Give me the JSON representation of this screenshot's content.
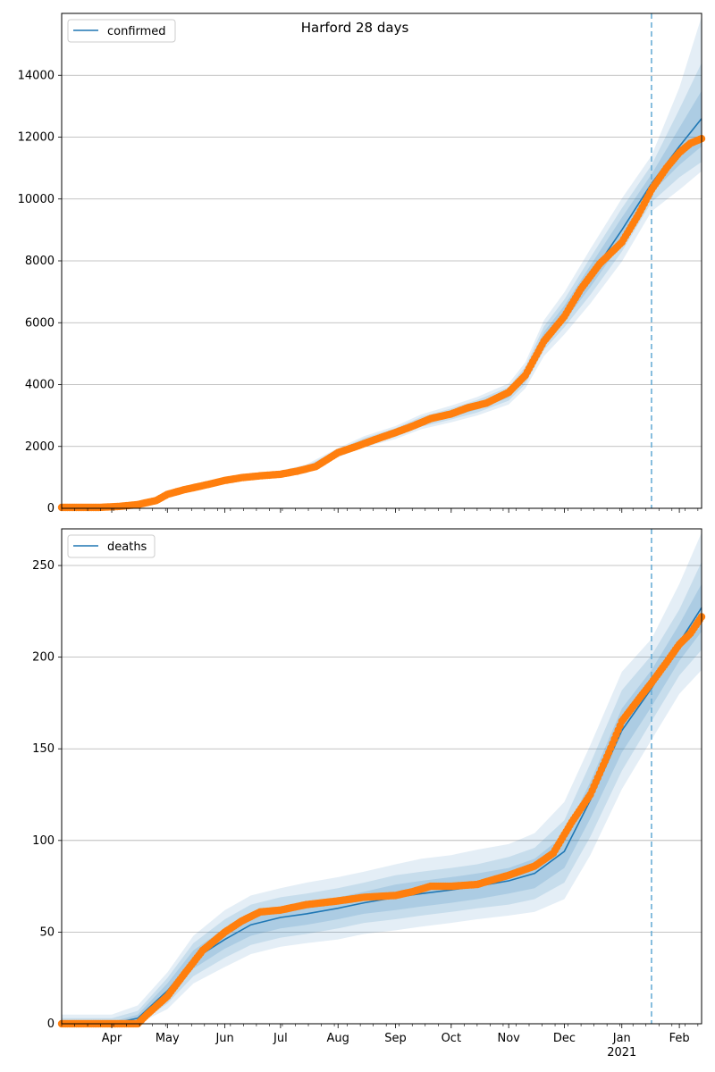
{
  "title": "Harford 28 days",
  "colors": {
    "model": "#1f77b4",
    "observed": "#ff7f0e",
    "band": "#1f77b4",
    "forecast_line": "#6aaed6",
    "grid": "#b0b0b0"
  },
  "x_axis": {
    "start": "2020-03-05",
    "end": "2021-02-13",
    "forecast_date": "2021-01-17",
    "month_ticks": [
      {
        "label": "Apr",
        "date": "2020-04-01"
      },
      {
        "label": "May",
        "date": "2020-05-01"
      },
      {
        "label": "Jun",
        "date": "2020-06-01"
      },
      {
        "label": "Jul",
        "date": "2020-07-01"
      },
      {
        "label": "Aug",
        "date": "2020-08-01"
      },
      {
        "label": "Sep",
        "date": "2020-09-01"
      },
      {
        "label": "Oct",
        "date": "2020-10-01"
      },
      {
        "label": "Nov",
        "date": "2020-11-01"
      },
      {
        "label": "Dec",
        "date": "2020-12-01"
      },
      {
        "label": "Jan",
        "date": "2021-01-01"
      },
      {
        "label": "Feb",
        "date": "2021-02-01"
      }
    ],
    "year_label": "2021"
  },
  "chart_data": [
    {
      "type": "line",
      "series_name": "confirmed",
      "legend": "confirmed",
      "legend_position": "top-left",
      "grid": "horizontal",
      "ylim": [
        0,
        16000
      ],
      "yticks": [
        0,
        2000,
        4000,
        6000,
        8000,
        10000,
        12000,
        14000
      ],
      "ytick_labels": [
        "0",
        "2000",
        "4000",
        "6000",
        "8000",
        "10000",
        "12000",
        "14000"
      ],
      "x": [
        "2020-03-05",
        "2020-03-20",
        "2020-04-01",
        "2020-04-15",
        "2020-05-01",
        "2020-05-15",
        "2020-06-01",
        "2020-06-15",
        "2020-07-01",
        "2020-07-15",
        "2020-08-01",
        "2020-08-15",
        "2020-09-01",
        "2020-09-15",
        "2020-10-01",
        "2020-10-15",
        "2020-11-01",
        "2020-11-10",
        "2020-11-20",
        "2020-12-01",
        "2020-12-15",
        "2021-01-01",
        "2021-01-17",
        "2021-02-01",
        "2021-02-13"
      ],
      "model": [
        40,
        45,
        60,
        150,
        450,
        700,
        900,
        1030,
        1110,
        1280,
        1800,
        2150,
        2450,
        2800,
        3050,
        3300,
        3700,
        4300,
        5500,
        6300,
        7500,
        9000,
        10500,
        11700,
        12600
      ],
      "band_inner": [
        [
          40,
          40
        ],
        [
          45,
          45
        ],
        [
          58,
          62
        ],
        [
          140,
          160
        ],
        [
          430,
          470
        ],
        [
          670,
          730
        ],
        [
          870,
          930
        ],
        [
          990,
          1070
        ],
        [
          1070,
          1150
        ],
        [
          1230,
          1330
        ],
        [
          1740,
          1860
        ],
        [
          2080,
          2220
        ],
        [
          2370,
          2530
        ],
        [
          2710,
          2890
        ],
        [
          2950,
          3150
        ],
        [
          3190,
          3410
        ],
        [
          3580,
          3820
        ],
        [
          4150,
          4450
        ],
        [
          5300,
          5700
        ],
        [
          6050,
          6550
        ],
        [
          7150,
          7850
        ],
        [
          8600,
          9400
        ],
        [
          10200,
          10800
        ],
        [
          11100,
          12300
        ],
        [
          11700,
          13500
        ]
      ],
      "band_mid": [
        [
          40,
          40
        ],
        [
          45,
          45
        ],
        [
          55,
          65
        ],
        [
          130,
          170
        ],
        [
          410,
          490
        ],
        [
          640,
          760
        ],
        [
          840,
          960
        ],
        [
          960,
          1100
        ],
        [
          1040,
          1180
        ],
        [
          1190,
          1370
        ],
        [
          1700,
          1900
        ],
        [
          2030,
          2270
        ],
        [
          2310,
          2590
        ],
        [
          2640,
          2960
        ],
        [
          2870,
          3230
        ],
        [
          3100,
          3500
        ],
        [
          3480,
          3920
        ],
        [
          4020,
          4580
        ],
        [
          5120,
          5880
        ],
        [
          5850,
          6750
        ],
        [
          6900,
          8100
        ],
        [
          8300,
          9700
        ],
        [
          9900,
          11100
        ],
        [
          10700,
          12900
        ],
        [
          11200,
          14400
        ]
      ],
      "band_outer": [
        [
          40,
          40
        ],
        [
          45,
          45
        ],
        [
          52,
          68
        ],
        [
          120,
          180
        ],
        [
          390,
          510
        ],
        [
          610,
          790
        ],
        [
          810,
          990
        ],
        [
          920,
          1140
        ],
        [
          1000,
          1220
        ],
        [
          1140,
          1420
        ],
        [
          1650,
          1950
        ],
        [
          1970,
          2330
        ],
        [
          2240,
          2660
        ],
        [
          2560,
          3040
        ],
        [
          2780,
          3320
        ],
        [
          3000,
          3600
        ],
        [
          3360,
          4040
        ],
        [
          3880,
          4720
        ],
        [
          4920,
          6080
        ],
        [
          5620,
          6980
        ],
        [
          6620,
          8380
        ],
        [
          7980,
          10020
        ],
        [
          9600,
          11400
        ],
        [
          10300,
          13600
        ],
        [
          10900,
          15900
        ]
      ],
      "observed": [
        [
          "2020-03-05",
          30
        ],
        [
          "2020-03-15",
          30
        ],
        [
          "2020-03-25",
          30
        ],
        [
          "2020-04-05",
          60
        ],
        [
          "2020-04-15",
          120
        ],
        [
          "2020-04-25",
          250
        ],
        [
          "2020-05-01",
          450
        ],
        [
          "2020-05-10",
          600
        ],
        [
          "2020-05-20",
          730
        ],
        [
          "2020-06-01",
          900
        ],
        [
          "2020-06-10",
          990
        ],
        [
          "2020-06-20",
          1050
        ],
        [
          "2020-07-01",
          1100
        ],
        [
          "2020-07-10",
          1200
        ],
        [
          "2020-07-20",
          1350
        ],
        [
          "2020-08-01",
          1800
        ],
        [
          "2020-08-10",
          1980
        ],
        [
          "2020-08-20",
          2200
        ],
        [
          "2020-09-01",
          2450
        ],
        [
          "2020-09-10",
          2650
        ],
        [
          "2020-09-20",
          2900
        ],
        [
          "2020-10-01",
          3050
        ],
        [
          "2020-10-10",
          3250
        ],
        [
          "2020-10-20",
          3400
        ],
        [
          "2020-11-01",
          3750
        ],
        [
          "2020-11-10",
          4300
        ],
        [
          "2020-11-20",
          5400
        ],
        [
          "2020-12-01",
          6200
        ],
        [
          "2020-12-10",
          7100
        ],
        [
          "2020-12-20",
          7900
        ],
        [
          "2021-01-01",
          8600
        ],
        [
          "2021-01-10",
          9500
        ],
        [
          "2021-01-17",
          10300
        ],
        [
          "2021-01-25",
          11000
        ],
        [
          "2021-02-01",
          11500
        ],
        [
          "2021-02-07",
          11800
        ],
        [
          "2021-02-13",
          11950
        ]
      ]
    },
    {
      "type": "line",
      "series_name": "deaths",
      "legend": "deaths",
      "legend_position": "top-left",
      "grid": "horizontal",
      "ylim": [
        0,
        270
      ],
      "yticks": [
        0,
        50,
        100,
        150,
        200,
        250
      ],
      "ytick_labels": [
        "0",
        "50",
        "100",
        "150",
        "200",
        "250"
      ],
      "x": [
        "2020-03-05",
        "2020-04-01",
        "2020-04-15",
        "2020-05-01",
        "2020-05-15",
        "2020-06-01",
        "2020-06-15",
        "2020-07-01",
        "2020-07-15",
        "2020-08-01",
        "2020-08-15",
        "2020-09-01",
        "2020-09-15",
        "2020-10-01",
        "2020-10-15",
        "2020-11-01",
        "2020-11-15",
        "2020-12-01",
        "2020-12-15",
        "2021-01-01",
        "2021-01-17",
        "2021-02-01",
        "2021-02-13"
      ],
      "model": [
        0,
        0,
        3,
        18,
        35,
        46,
        54,
        58,
        60,
        63,
        66,
        69,
        71,
        73,
        75,
        78,
        82,
        94,
        122,
        160,
        183,
        208,
        227
      ],
      "band_inner": [
        [
          0,
          1
        ],
        [
          0,
          1
        ],
        [
          1,
          5
        ],
        [
          14,
          22
        ],
        [
          30,
          40
        ],
        [
          41,
          52
        ],
        [
          48,
          60
        ],
        [
          52,
          64
        ],
        [
          54,
          66
        ],
        [
          57,
          69
        ],
        [
          60,
          72
        ],
        [
          62,
          76
        ],
        [
          64,
          78
        ],
        [
          66,
          80
        ],
        [
          68,
          82
        ],
        [
          71,
          85
        ],
        [
          74,
          90
        ],
        [
          85,
          103
        ],
        [
          112,
          132
        ],
        [
          148,
          172
        ],
        [
          173,
          193
        ],
        [
          198,
          218
        ],
        [
          214,
          240
        ]
      ],
      "band_mid": [
        [
          0,
          3
        ],
        [
          0,
          3
        ],
        [
          0,
          7
        ],
        [
          11,
          25
        ],
        [
          26,
          44
        ],
        [
          36,
          57
        ],
        [
          43,
          65
        ],
        [
          47,
          69
        ],
        [
          49,
          71
        ],
        [
          52,
          74
        ],
        [
          55,
          77
        ],
        [
          57,
          81
        ],
        [
          59,
          83
        ],
        [
          61,
          85
        ],
        [
          63,
          87
        ],
        [
          65,
          91
        ],
        [
          68,
          96
        ],
        [
          77,
          111
        ],
        [
          102,
          142
        ],
        [
          138,
          182
        ],
        [
          165,
          201
        ],
        [
          190,
          226
        ],
        [
          204,
          252
        ]
      ],
      "band_outer": [
        [
          0,
          5
        ],
        [
          0,
          5
        ],
        [
          0,
          10
        ],
        [
          8,
          28
        ],
        [
          22,
          48
        ],
        [
          31,
          62
        ],
        [
          38,
          70
        ],
        [
          42,
          74
        ],
        [
          44,
          77
        ],
        [
          46,
          80
        ],
        [
          49,
          83
        ],
        [
          51,
          87
        ],
        [
          53,
          90
        ],
        [
          55,
          92
        ],
        [
          57,
          95
        ],
        [
          59,
          98
        ],
        [
          61,
          104
        ],
        [
          68,
          121
        ],
        [
          92,
          152
        ],
        [
          128,
          192
        ],
        [
          155,
          210
        ],
        [
          180,
          240
        ],
        [
          193,
          268
        ]
      ],
      "observed": [
        [
          "2020-03-05",
          0
        ],
        [
          "2020-04-01",
          0
        ],
        [
          "2020-04-15",
          0
        ],
        [
          "2020-04-20",
          5
        ],
        [
          "2020-05-01",
          15
        ],
        [
          "2020-05-10",
          27
        ],
        [
          "2020-05-20",
          40
        ],
        [
          "2020-06-01",
          50
        ],
        [
          "2020-06-10",
          56
        ],
        [
          "2020-06-20",
          61
        ],
        [
          "2020-07-01",
          62
        ],
        [
          "2020-07-15",
          65
        ],
        [
          "2020-08-01",
          67
        ],
        [
          "2020-08-15",
          69
        ],
        [
          "2020-09-01",
          70
        ],
        [
          "2020-09-10",
          72
        ],
        [
          "2020-09-20",
          75
        ],
        [
          "2020-10-01",
          75
        ],
        [
          "2020-10-15",
          76
        ],
        [
          "2020-11-01",
          81
        ],
        [
          "2020-11-15",
          86
        ],
        [
          "2020-11-25",
          93
        ],
        [
          "2020-12-05",
          110
        ],
        [
          "2020-12-15",
          125
        ],
        [
          "2020-12-25",
          148
        ],
        [
          "2021-01-01",
          165
        ],
        [
          "2021-01-10",
          177
        ],
        [
          "2021-01-17",
          186
        ],
        [
          "2021-01-25",
          197
        ],
        [
          "2021-02-01",
          207
        ],
        [
          "2021-02-07",
          213
        ],
        [
          "2021-02-13",
          222
        ]
      ]
    }
  ]
}
